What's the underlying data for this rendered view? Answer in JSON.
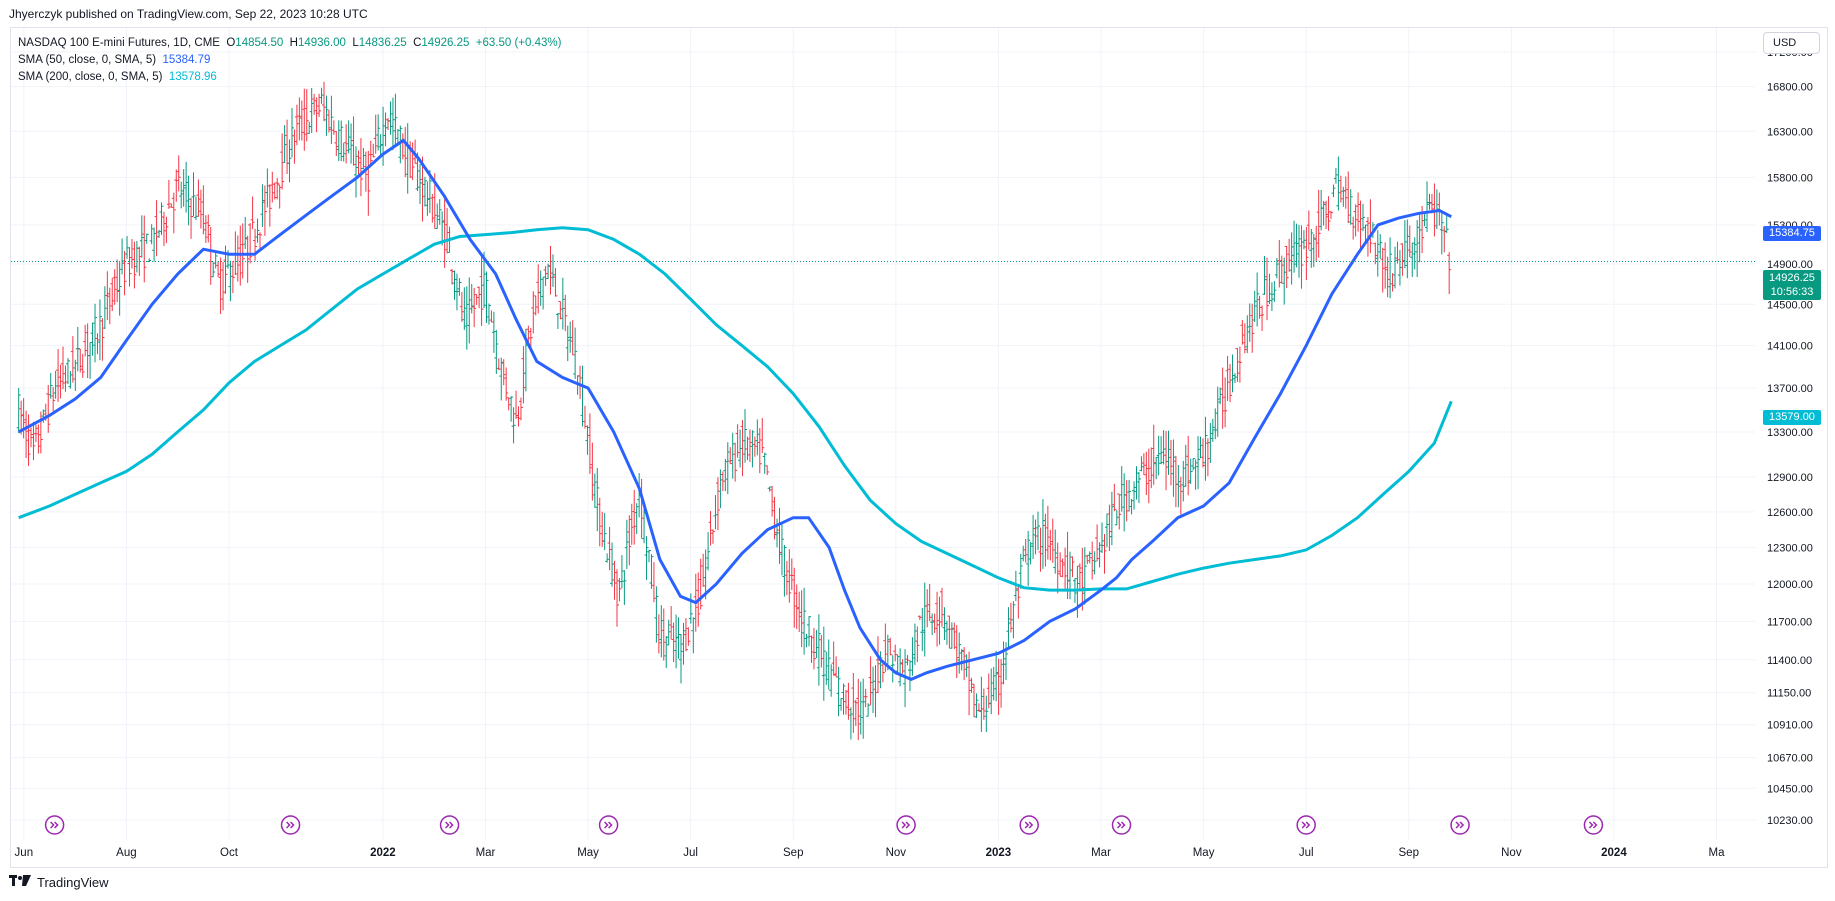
{
  "header": {
    "published": "Jhyerczyk published on TradingView.com, Sep 22, 2023 10:28 UTC"
  },
  "legend": {
    "symbol": "NASDAQ 100 E-mini Futures, 1D, CME",
    "open_label": "O",
    "open": "14854.50",
    "high_label": "H",
    "high": "14936.00",
    "low_label": "L",
    "low": "14836.25",
    "close_label": "C",
    "close": "14926.25",
    "change": "+63.50 (+0.43%)",
    "sma50_label": "SMA (50, close, 0, SMA, 5)",
    "sma50_value": "15384.79",
    "sma200_label": "SMA (200, close, 0, SMA, 5)",
    "sma200_value": "13578.96"
  },
  "currency_button": "USD",
  "tags": {
    "sma50": "15384.75",
    "last_price": "14926.25",
    "countdown": "10:56:33",
    "sma200": "13579.00"
  },
  "footer": {
    "brand": "TradingView"
  },
  "colors": {
    "up": "#089981",
    "down": "#f23645",
    "sma50": "#2962ff",
    "sma200": "#00bcd4",
    "grid": "#f0f3fa",
    "event_icon": "#9c27b0"
  },
  "chart_data": {
    "type": "ohlc",
    "title": "NASDAQ 100 E-mini Futures, 1D, CME",
    "x_tick_labels": [
      "Jun",
      "Aug",
      "Oct",
      "2022",
      "Mar",
      "May",
      "Jul",
      "Sep",
      "Nov",
      "2023",
      "Mar",
      "May",
      "Jul",
      "Sep",
      "Nov",
      "2024",
      "Ma"
    ],
    "x_tick_months": [
      0,
      2,
      4,
      7,
      9,
      11,
      13,
      15,
      17,
      19,
      21,
      23,
      25,
      27,
      29,
      31,
      33
    ],
    "x_start": "2021-06",
    "y_ticks": [
      17200,
      16800,
      16300,
      15800,
      15300,
      14900,
      14500,
      14100,
      13700,
      13300,
      12900,
      12600,
      12300,
      12000,
      11700,
      11400,
      11150,
      10910,
      10670,
      10450,
      10230
    ],
    "y_tick_labels": [
      "17200.00",
      "16800.00",
      "16300.00",
      "15800.00",
      "15300.00",
      "14900.00",
      "14500.00",
      "14100.00",
      "13700.00",
      "13300.00",
      "12900.00",
      "12600.00",
      "12300.00",
      "12000.00",
      "11700.00",
      "11400.00",
      "11150.00",
      "10910.00",
      "10670.00",
      "10450.00",
      "10230.00"
    ],
    "ylim": [
      10160,
      17480
    ],
    "y_scale": "log",
    "last_price": 14926.25,
    "price_path": [
      [
        -0.1,
        13500
      ],
      [
        0.2,
        13100
      ],
      [
        0.6,
        13700
      ],
      [
        1.0,
        13900
      ],
      [
        1.5,
        14300
      ],
      [
        2.0,
        14900
      ],
      [
        2.5,
        15100
      ],
      [
        3.0,
        15700
      ],
      [
        3.5,
        15400
      ],
      [
        3.8,
        14700
      ],
      [
        4.3,
        15000
      ],
      [
        4.8,
        15600
      ],
      [
        5.3,
        16300
      ],
      [
        5.8,
        16600
      ],
      [
        6.2,
        16200
      ],
      [
        6.7,
        15800
      ],
      [
        7.1,
        16500
      ],
      [
        7.5,
        16000
      ],
      [
        7.9,
        15600
      ],
      [
        8.3,
        15100
      ],
      [
        8.6,
        14300
      ],
      [
        9.0,
        14700
      ],
      [
        9.3,
        13900
      ],
      [
        9.6,
        13400
      ],
      [
        9.9,
        14300
      ],
      [
        10.2,
        14900
      ],
      [
        10.5,
        14400
      ],
      [
        10.8,
        13900
      ],
      [
        11.2,
        12600
      ],
      [
        11.6,
        11900
      ],
      [
        12.0,
        12800
      ],
      [
        12.4,
        11600
      ],
      [
        12.8,
        11500
      ],
      [
        13.2,
        11900
      ],
      [
        13.6,
        12900
      ],
      [
        14.0,
        13200
      ],
      [
        14.4,
        13100
      ],
      [
        14.8,
        12200
      ],
      [
        15.2,
        11700
      ],
      [
        15.6,
        11400
      ],
      [
        16.0,
        11100
      ],
      [
        16.4,
        11000
      ],
      [
        16.8,
        11500
      ],
      [
        17.2,
        11300
      ],
      [
        17.5,
        11700
      ],
      [
        17.9,
        11800
      ],
      [
        18.2,
        11500
      ],
      [
        18.6,
        11000
      ],
      [
        19.0,
        11200
      ],
      [
        19.3,
        11800
      ],
      [
        19.6,
        12300
      ],
      [
        19.9,
        12400
      ],
      [
        20.2,
        12200
      ],
      [
        20.6,
        12000
      ],
      [
        21.0,
        12300
      ],
      [
        21.4,
        12700
      ],
      [
        21.8,
        12900
      ],
      [
        22.2,
        13100
      ],
      [
        22.6,
        12900
      ],
      [
        23.0,
        13100
      ],
      [
        23.4,
        13600
      ],
      [
        23.8,
        14200
      ],
      [
        24.2,
        14600
      ],
      [
        24.6,
        14900
      ],
      [
        25.0,
        15100
      ],
      [
        25.3,
        15300
      ],
      [
        25.6,
        15700
      ],
      [
        26.0,
        15400
      ],
      [
        26.3,
        15200
      ],
      [
        26.6,
        14800
      ],
      [
        26.9,
        15000
      ],
      [
        27.2,
        15200
      ],
      [
        27.4,
        15450
      ],
      [
        27.6,
        15350
      ],
      [
        27.83,
        14900
      ]
    ],
    "series": [
      {
        "name": "SMA (50, close, 0, SMA, 5)",
        "last": 15384.79,
        "points": [
          [
            -0.1,
            13300
          ],
          [
            0.5,
            13450
          ],
          [
            1.0,
            13600
          ],
          [
            1.5,
            13800
          ],
          [
            2.0,
            14150
          ],
          [
            2.5,
            14500
          ],
          [
            3.0,
            14800
          ],
          [
            3.5,
            15050
          ],
          [
            4.0,
            15000
          ],
          [
            4.5,
            15000
          ],
          [
            5.0,
            15200
          ],
          [
            5.5,
            15400
          ],
          [
            6.0,
            15600
          ],
          [
            6.5,
            15800
          ],
          [
            7.0,
            16050
          ],
          [
            7.4,
            16200
          ],
          [
            7.7,
            16000
          ],
          [
            8.2,
            15600
          ],
          [
            8.7,
            15150
          ],
          [
            9.2,
            14800
          ],
          [
            9.6,
            14350
          ],
          [
            10.0,
            13950
          ],
          [
            10.5,
            13800
          ],
          [
            11.0,
            13700
          ],
          [
            11.5,
            13300
          ],
          [
            12.0,
            12800
          ],
          [
            12.4,
            12200
          ],
          [
            12.8,
            11900
          ],
          [
            13.1,
            11850
          ],
          [
            13.5,
            12000
          ],
          [
            14.0,
            12250
          ],
          [
            14.5,
            12450
          ],
          [
            15.0,
            12550
          ],
          [
            15.3,
            12550
          ],
          [
            15.7,
            12300
          ],
          [
            16.0,
            11950
          ],
          [
            16.3,
            11650
          ],
          [
            16.7,
            11400
          ],
          [
            17.0,
            11300
          ],
          [
            17.3,
            11250
          ],
          [
            17.6,
            11300
          ],
          [
            18.0,
            11350
          ],
          [
            18.5,
            11400
          ],
          [
            19.0,
            11450
          ],
          [
            19.5,
            11550
          ],
          [
            20.0,
            11700
          ],
          [
            20.5,
            11800
          ],
          [
            21.0,
            11950
          ],
          [
            21.3,
            12050
          ],
          [
            21.6,
            12200
          ],
          [
            22.0,
            12350
          ],
          [
            22.5,
            12550
          ],
          [
            23.0,
            12650
          ],
          [
            23.5,
            12850
          ],
          [
            24.0,
            13250
          ],
          [
            24.5,
            13650
          ],
          [
            25.0,
            14100
          ],
          [
            25.5,
            14600
          ],
          [
            26.0,
            15000
          ],
          [
            26.4,
            15300
          ],
          [
            26.8,
            15370
          ],
          [
            27.2,
            15420
          ],
          [
            27.6,
            15450
          ],
          [
            27.83,
            15384.79
          ]
        ]
      },
      {
        "name": "SMA (200, close, 0, SMA, 5)",
        "last": 13578.96,
        "points": [
          [
            -0.1,
            12550
          ],
          [
            0.5,
            12650
          ],
          [
            1.0,
            12750
          ],
          [
            1.5,
            12850
          ],
          [
            2.0,
            12950
          ],
          [
            2.5,
            13100
          ],
          [
            3.0,
            13300
          ],
          [
            3.5,
            13500
          ],
          [
            4.0,
            13750
          ],
          [
            4.5,
            13950
          ],
          [
            5.0,
            14100
          ],
          [
            5.5,
            14250
          ],
          [
            6.0,
            14450
          ],
          [
            6.5,
            14650
          ],
          [
            7.0,
            14800
          ],
          [
            7.5,
            14950
          ],
          [
            8.0,
            15100
          ],
          [
            8.5,
            15180
          ],
          [
            9.0,
            15200
          ],
          [
            9.5,
            15220
          ],
          [
            10.0,
            15250
          ],
          [
            10.5,
            15270
          ],
          [
            11.0,
            15250
          ],
          [
            11.5,
            15150
          ],
          [
            12.0,
            15000
          ],
          [
            12.5,
            14800
          ],
          [
            13.0,
            14550
          ],
          [
            13.5,
            14300
          ],
          [
            14.0,
            14100
          ],
          [
            14.5,
            13900
          ],
          [
            15.0,
            13650
          ],
          [
            15.5,
            13350
          ],
          [
            16.0,
            13000
          ],
          [
            16.5,
            12700
          ],
          [
            17.0,
            12500
          ],
          [
            17.5,
            12350
          ],
          [
            18.0,
            12250
          ],
          [
            18.5,
            12150
          ],
          [
            19.0,
            12050
          ],
          [
            19.5,
            11970
          ],
          [
            20.0,
            11950
          ],
          [
            20.5,
            11950
          ],
          [
            21.0,
            11960
          ],
          [
            21.5,
            11960
          ],
          [
            22.0,
            12020
          ],
          [
            22.5,
            12080
          ],
          [
            23.0,
            12130
          ],
          [
            23.5,
            12170
          ],
          [
            24.0,
            12200
          ],
          [
            24.5,
            12230
          ],
          [
            25.0,
            12280
          ],
          [
            25.5,
            12400
          ],
          [
            26.0,
            12550
          ],
          [
            26.5,
            12750
          ],
          [
            27.0,
            12950
          ],
          [
            27.5,
            13200
          ],
          [
            27.83,
            13578.96
          ]
        ]
      }
    ],
    "event_markers_months": [
      0.6,
      5.2,
      8.3,
      11.4,
      17.2,
      19.6,
      21.4,
      25.0,
      28.0,
      30.6
    ]
  }
}
